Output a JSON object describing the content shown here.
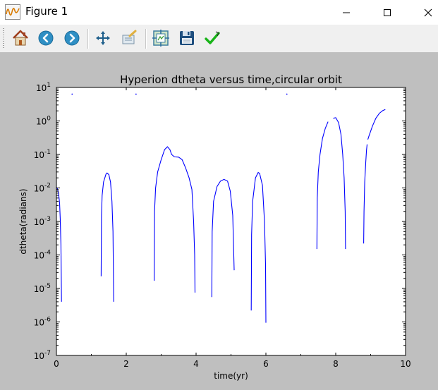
{
  "window": {
    "title": "Figure 1",
    "app_icon": "matplotlib-figure-icon",
    "controls": [
      "minimize-icon",
      "maximize-icon",
      "close-icon"
    ]
  },
  "toolbar": {
    "buttons": [
      {
        "name": "home-button",
        "icon": "home-icon"
      },
      {
        "name": "back-button",
        "icon": "back-arrow-icon"
      },
      {
        "name": "forward-button",
        "icon": "forward-arrow-icon"
      },
      {
        "name": "pan-button",
        "icon": "move-icon"
      },
      {
        "name": "zoom-button",
        "icon": "zoom-rect-icon"
      },
      {
        "name": "subplots-button",
        "icon": "configure-subplots-icon"
      },
      {
        "name": "save-button",
        "icon": "floppy-disk-icon"
      },
      {
        "name": "edit-button",
        "icon": "checkmark-icon"
      }
    ]
  },
  "colors": {
    "background": "#bfbfbf",
    "line": "#0000ff",
    "axes_face": "#ffffff"
  },
  "chart_data": {
    "type": "line",
    "title": "Hyperion dtheta versus time,circular orbit",
    "xlabel": "time(yr)",
    "ylabel": "dtheta(radians)",
    "xlim": [
      0,
      10
    ],
    "ylim": [
      1e-07,
      10
    ],
    "yscale": "log",
    "grid": false,
    "xticks": [
      "0",
      "2",
      "4",
      "6",
      "8",
      "10"
    ],
    "yticks": [
      {
        "base": "10",
        "exp": "1"
      },
      {
        "base": "10",
        "exp": "0"
      },
      {
        "base": "10",
        "exp": "-1"
      },
      {
        "base": "10",
        "exp": "-2"
      },
      {
        "base": "10",
        "exp": "-3"
      },
      {
        "base": "10",
        "exp": "-4"
      },
      {
        "base": "10",
        "exp": "-5"
      },
      {
        "base": "10",
        "exp": "-6"
      },
      {
        "base": "10",
        "exp": "-7"
      }
    ],
    "series": [
      {
        "values": [
          [
            0.0,
            0.0105
          ],
          [
            0.03,
            0.0095
          ],
          [
            0.06,
            0.007
          ],
          [
            0.09,
            0.0035
          ],
          [
            0.11,
            0.0012
          ],
          [
            0.13,
            0.0002
          ],
          [
            0.145,
            4e-06
          ]
        ]
      },
      {
        "values": [
          [
            1.28,
            2.3e-05
          ],
          [
            1.29,
            0.0015
          ],
          [
            1.31,
            0.006
          ],
          [
            1.35,
            0.015
          ],
          [
            1.42,
            0.026
          ],
          [
            1.45,
            0.028
          ],
          [
            1.5,
            0.025
          ],
          [
            1.55,
            0.015
          ],
          [
            1.59,
            0.004
          ],
          [
            1.62,
            0.0005
          ],
          [
            1.64,
            4e-06
          ]
        ]
      },
      {
        "values": [
          [
            2.8,
            1.7e-05
          ],
          [
            2.81,
            0.002
          ],
          [
            2.84,
            0.01
          ],
          [
            2.9,
            0.03
          ],
          [
            3.0,
            0.07
          ],
          [
            3.1,
            0.14
          ],
          [
            3.18,
            0.17
          ],
          [
            3.25,
            0.14
          ],
          [
            3.3,
            0.1
          ],
          [
            3.38,
            0.085
          ],
          [
            3.5,
            0.083
          ],
          [
            3.6,
            0.07
          ],
          [
            3.7,
            0.04
          ],
          [
            3.8,
            0.02
          ],
          [
            3.88,
            0.009
          ],
          [
            3.93,
            0.001
          ],
          [
            3.96,
            0.0001
          ],
          [
            3.97,
            7.5e-06
          ]
        ]
      },
      {
        "values": [
          [
            4.45,
            5.5e-06
          ],
          [
            4.46,
            0.0005
          ],
          [
            4.5,
            0.004
          ],
          [
            4.6,
            0.011
          ],
          [
            4.7,
            0.016
          ],
          [
            4.8,
            0.018
          ],
          [
            4.9,
            0.016
          ],
          [
            4.98,
            0.008
          ],
          [
            5.05,
            0.0015
          ],
          [
            5.09,
            3.5e-05
          ]
        ]
      },
      {
        "values": [
          [
            5.58,
            2.2e-06
          ],
          [
            5.59,
            0.0004
          ],
          [
            5.62,
            0.004
          ],
          [
            5.7,
            0.02
          ],
          [
            5.78,
            0.029
          ],
          [
            5.82,
            0.027
          ],
          [
            5.9,
            0.012
          ],
          [
            5.96,
            0.001
          ],
          [
            5.99,
            5e-05
          ],
          [
            6.0,
            9.5e-07
          ]
        ]
      },
      {
        "values": [
          [
            7.46,
            0.00015
          ],
          [
            7.47,
            0.005
          ],
          [
            7.5,
            0.03
          ],
          [
            7.55,
            0.1
          ],
          [
            7.62,
            0.3
          ],
          [
            7.7,
            0.6
          ],
          [
            7.78,
            0.95
          ]
        ]
      },
      {
        "values": [
          [
            7.93,
            1.2
          ],
          [
            8.0,
            1.25
          ],
          [
            8.08,
            0.9
          ],
          [
            8.15,
            0.4
          ],
          [
            8.2,
            0.1
          ],
          [
            8.24,
            0.02
          ],
          [
            8.27,
            0.002
          ],
          [
            8.28,
            0.00015
          ]
        ]
      },
      {
        "values": [
          [
            8.8,
            0.00022
          ],
          [
            8.81,
            0.002
          ],
          [
            8.83,
            0.015
          ],
          [
            8.86,
            0.06
          ],
          [
            8.88,
            0.13
          ],
          [
            8.9,
            0.2
          ]
        ]
      },
      {
        "values": [
          [
            8.92,
            0.28
          ],
          [
            8.95,
            0.35
          ],
          [
            9.05,
            0.7
          ],
          [
            9.15,
            1.2
          ],
          [
            9.25,
            1.7
          ],
          [
            9.35,
            2.05
          ],
          [
            9.42,
            2.2
          ]
        ]
      }
    ],
    "stray_points": [
      [
        0.45,
        6.3
      ],
      [
        2.28,
        6.3
      ],
      [
        6.6,
        6.3
      ]
    ]
  }
}
